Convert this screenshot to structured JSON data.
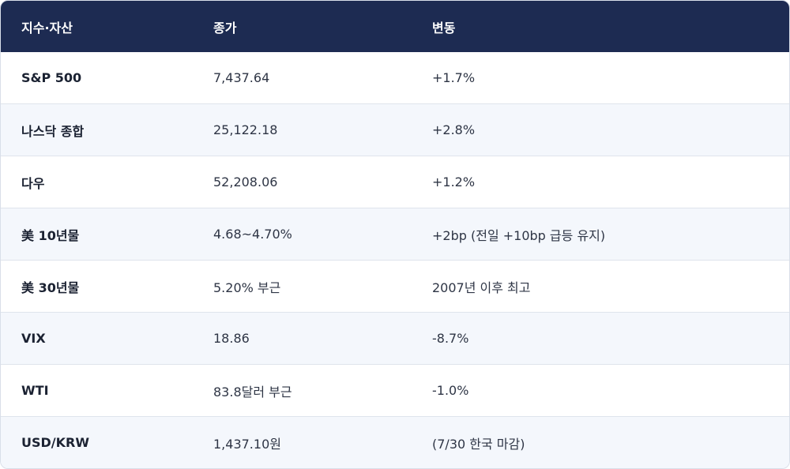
{
  "table": {
    "headers": [
      "지수·자산",
      "종가",
      "변동"
    ],
    "rows": [
      {
        "asset": "S&P 500",
        "close": "7,437.64",
        "change": "+1.7%"
      },
      {
        "asset": "나스닥 종합",
        "close": "25,122.18",
        "change": "+2.8%"
      },
      {
        "asset": "다우",
        "close": "52,208.06",
        "change": "+1.2%"
      },
      {
        "asset": "美 10년물",
        "close": "4.68~4.70%",
        "change": "+2bp (전일 +10bp 급등 유지)"
      },
      {
        "asset": "美 30년물",
        "close": "5.20% 부근",
        "change": "2007년 이후 최고"
      },
      {
        "asset": "VIX",
        "close": "18.86",
        "change": "-8.7%"
      },
      {
        "asset": "WTI",
        "close": "83.8달러 부근",
        "change": "-1.0%"
      },
      {
        "asset": "USD/KRW",
        "close": "1,437.10원",
        "change": "(7/30 한국 마감)"
      }
    ]
  },
  "colors": {
    "header_bg": "#1d2b52",
    "alt_row_bg": "#f4f7fc"
  }
}
